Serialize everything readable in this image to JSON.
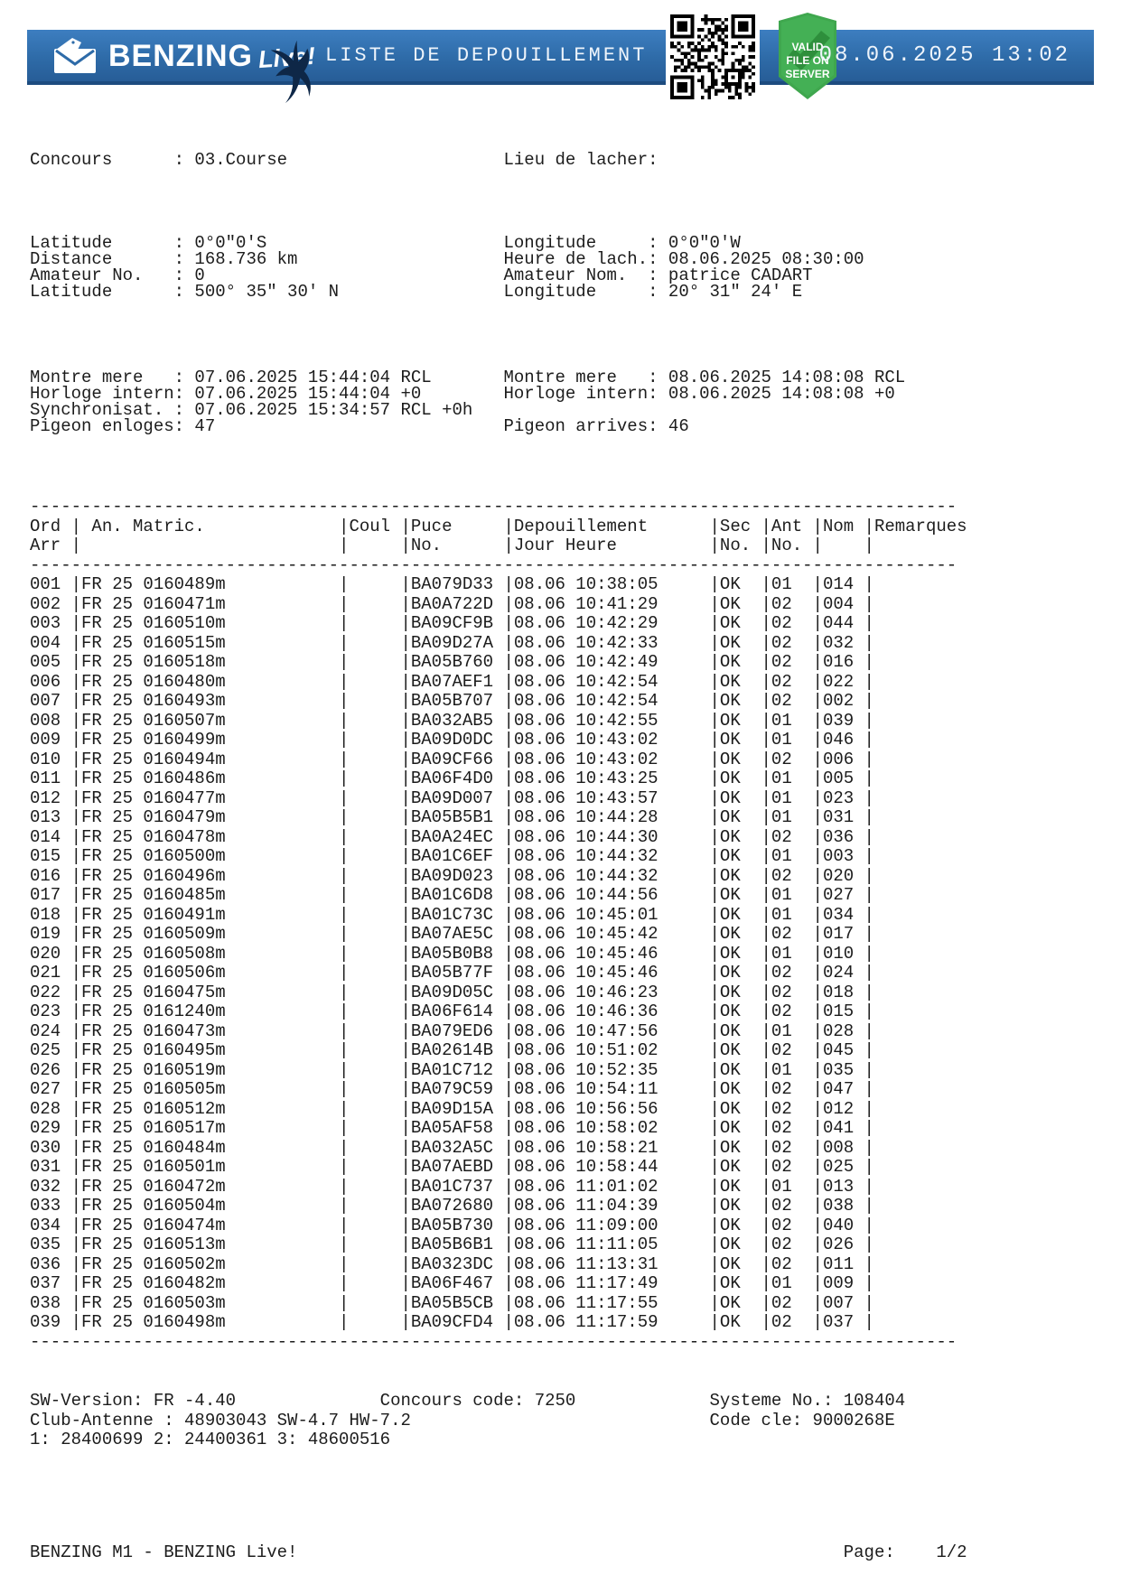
{
  "header": {
    "brand": "BENZING",
    "brand_suffix": "Live!",
    "title": "LISTE DE DEPOUILLEMENT",
    "timestamp": "08.06.2025 13:02",
    "badge": {
      "l1": "VALID",
      "l2": "FILE ON",
      "l3": "SERVER"
    },
    "colors": {
      "bar_blue": "#2e6ba8",
      "badge_green": "#3fa74e",
      "bird_navy": "#0e2747"
    }
  },
  "info": {
    "groups": [
      [
        {
          "l": [
            "Concours",
            "03.Course"
          ],
          "r": [
            "Lieu de lacher",
            ""
          ]
        }
      ],
      [
        {
          "l": [
            "Latitude",
            "0°0\"0'S"
          ],
          "r": [
            "Longitude",
            "0°0\"0'W"
          ]
        },
        {
          "l": [
            "Distance",
            "168.736 km"
          ],
          "r": [
            "Heure de lach.",
            "08.06.2025 08:30:00"
          ]
        },
        {
          "l": [
            "Amateur No.",
            "0"
          ],
          "r": [
            "Amateur Nom.",
            "patrice CADART"
          ]
        },
        {
          "l": [
            "Latitude",
            "500° 35\" 30' N"
          ],
          "r": [
            "Longitude",
            "20° 31\" 24' E"
          ]
        }
      ],
      [
        {
          "l": [
            "Montre mere",
            "07.06.2025 15:44:04 RCL"
          ],
          "r": [
            "Montre mere",
            "08.06.2025 14:08:08 RCL"
          ]
        },
        {
          "l": [
            "Horloge intern",
            "07.06.2025 15:44:04 +0"
          ],
          "r": [
            "Horloge intern",
            "08.06.2025 14:08:08 +0"
          ]
        },
        {
          "l": [
            "Synchronisat.",
            "07.06.2025 15:34:57 RCL +0h"
          ],
          "r": null
        },
        {
          "l": [
            "Pigeon enloges",
            "47"
          ],
          "r": [
            "Pigeon arrives",
            "46"
          ]
        }
      ]
    ]
  },
  "table": {
    "header1": [
      "Ord",
      " An. Matric.",
      "Coul",
      "Puce",
      "Depouillement",
      "Sec",
      "Ant",
      "Nom",
      "Remarques"
    ],
    "header2": [
      "Arr",
      "",
      "",
      "No.",
      "Jour Heure",
      "No.",
      "No.",
      "",
      ""
    ],
    "rows": [
      [
        "001",
        "FR 25 0160489m",
        "BA079D33",
        "08.06 10:38:05",
        "OK",
        "01",
        "014"
      ],
      [
        "002",
        "FR 25 0160471m",
        "BA0A722D",
        "08.06 10:41:29",
        "OK",
        "02",
        "004"
      ],
      [
        "003",
        "FR 25 0160510m",
        "BA09CF9B",
        "08.06 10:42:29",
        "OK",
        "02",
        "044"
      ],
      [
        "004",
        "FR 25 0160515m",
        "BA09D27A",
        "08.06 10:42:33",
        "OK",
        "02",
        "032"
      ],
      [
        "005",
        "FR 25 0160518m",
        "BA05B760",
        "08.06 10:42:49",
        "OK",
        "02",
        "016"
      ],
      [
        "006",
        "FR 25 0160480m",
        "BA07AEF1",
        "08.06 10:42:54",
        "OK",
        "02",
        "022"
      ],
      [
        "007",
        "FR 25 0160493m",
        "BA05B707",
        "08.06 10:42:54",
        "OK",
        "02",
        "002"
      ],
      [
        "008",
        "FR 25 0160507m",
        "BA032AB5",
        "08.06 10:42:55",
        "OK",
        "01",
        "039"
      ],
      [
        "009",
        "FR 25 0160499m",
        "BA09D0DC",
        "08.06 10:43:02",
        "OK",
        "01",
        "046"
      ],
      [
        "010",
        "FR 25 0160494m",
        "BA09CF66",
        "08.06 10:43:02",
        "OK",
        "02",
        "006"
      ],
      [
        "011",
        "FR 25 0160486m",
        "BA06F4D0",
        "08.06 10:43:25",
        "OK",
        "01",
        "005"
      ],
      [
        "012",
        "FR 25 0160477m",
        "BA09D007",
        "08.06 10:43:57",
        "OK",
        "01",
        "023"
      ],
      [
        "013",
        "FR 25 0160479m",
        "BA05B5B1",
        "08.06 10:44:28",
        "OK",
        "01",
        "031"
      ],
      [
        "014",
        "FR 25 0160478m",
        "BA0A24EC",
        "08.06 10:44:30",
        "OK",
        "02",
        "036"
      ],
      [
        "015",
        "FR 25 0160500m",
        "BA01C6EF",
        "08.06 10:44:32",
        "OK",
        "01",
        "003"
      ],
      [
        "016",
        "FR 25 0160496m",
        "BA09D023",
        "08.06 10:44:32",
        "OK",
        "02",
        "020"
      ],
      [
        "017",
        "FR 25 0160485m",
        "BA01C6D8",
        "08.06 10:44:56",
        "OK",
        "01",
        "027"
      ],
      [
        "018",
        "FR 25 0160491m",
        "BA01C73C",
        "08.06 10:45:01",
        "OK",
        "01",
        "034"
      ],
      [
        "019",
        "FR 25 0160509m",
        "BA07AE5C",
        "08.06 10:45:42",
        "OK",
        "02",
        "017"
      ],
      [
        "020",
        "FR 25 0160508m",
        "BA05B0B8",
        "08.06 10:45:46",
        "OK",
        "01",
        "010"
      ],
      [
        "021",
        "FR 25 0160506m",
        "BA05B77F",
        "08.06 10:45:46",
        "OK",
        "02",
        "024"
      ],
      [
        "022",
        "FR 25 0160475m",
        "BA09D05C",
        "08.06 10:46:23",
        "OK",
        "02",
        "018"
      ],
      [
        "023",
        "FR 25 0161240m",
        "BA06F614",
        "08.06 10:46:36",
        "OK",
        "02",
        "015"
      ],
      [
        "024",
        "FR 25 0160473m",
        "BA079ED6",
        "08.06 10:47:56",
        "OK",
        "01",
        "028"
      ],
      [
        "025",
        "FR 25 0160495m",
        "BA02614B",
        "08.06 10:51:02",
        "OK",
        "02",
        "045"
      ],
      [
        "026",
        "FR 25 0160519m",
        "BA01C712",
        "08.06 10:52:35",
        "OK",
        "01",
        "035"
      ],
      [
        "027",
        "FR 25 0160505m",
        "BA079C59",
        "08.06 10:54:11",
        "OK",
        "02",
        "047"
      ],
      [
        "028",
        "FR 25 0160512m",
        "BA09D15A",
        "08.06 10:56:56",
        "OK",
        "02",
        "012"
      ],
      [
        "029",
        "FR 25 0160517m",
        "BA05AF58",
        "08.06 10:58:02",
        "OK",
        "02",
        "041"
      ],
      [
        "030",
        "FR 25 0160484m",
        "BA032A5C",
        "08.06 10:58:21",
        "OK",
        "02",
        "008"
      ],
      [
        "031",
        "FR 25 0160501m",
        "BA07AEBD",
        "08.06 10:58:44",
        "OK",
        "02",
        "025"
      ],
      [
        "032",
        "FR 25 0160472m",
        "BA01C737",
        "08.06 11:01:02",
        "OK",
        "01",
        "013"
      ],
      [
        "033",
        "FR 25 0160504m",
        "BA072680",
        "08.06 11:04:39",
        "OK",
        "02",
        "038"
      ],
      [
        "034",
        "FR 25 0160474m",
        "BA05B730",
        "08.06 11:09:00",
        "OK",
        "02",
        "040"
      ],
      [
        "035",
        "FR 25 0160513m",
        "BA05B6B1",
        "08.06 11:11:05",
        "OK",
        "02",
        "026"
      ],
      [
        "036",
        "FR 25 0160502m",
        "BA0323DC",
        "08.06 11:13:31",
        "OK",
        "02",
        "011"
      ],
      [
        "037",
        "FR 25 0160482m",
        "BA06F467",
        "08.06 11:17:49",
        "OK",
        "01",
        "009"
      ],
      [
        "038",
        "FR 25 0160503m",
        "BA05B5CB",
        "08.06 11:17:55",
        "OK",
        "02",
        "007"
      ],
      [
        "039",
        "FR 25 0160498m",
        "BA09CFD4",
        "08.06 11:17:59",
        "OK",
        "02",
        "037"
      ]
    ]
  },
  "footer": {
    "sw_version": "SW-Version: FR -4.40",
    "concours_code": "Concours code: 7250",
    "systeme_no": "Systeme No.: 108404",
    "club_antenne": "Club-Antenne : 48903043 SW-4.7 HW-7.2",
    "code_cle": "Code cle: 9000268E",
    "antennas": "1: 28400699 2: 24400361 3: 48600516"
  },
  "page_footer": {
    "left": "BENZING M1 - BENZING Live!",
    "page_label": "Page:",
    "page_value": "1/2"
  }
}
